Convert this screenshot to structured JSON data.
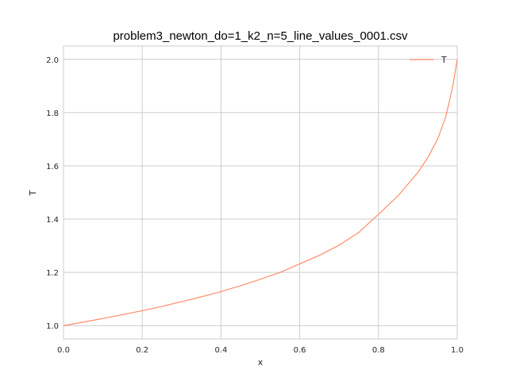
{
  "chart_data": {
    "type": "line",
    "title": "problem3_newton_do=1_k2_n=5_line_values_0001.csv",
    "xlabel": "x",
    "ylabel": "T",
    "xlim": [
      0.0,
      1.0
    ],
    "ylim": [
      0.95,
      2.05
    ],
    "xticks": [
      0.0,
      0.2,
      0.4,
      0.6,
      0.8,
      1.0
    ],
    "yticks": [
      1.0,
      1.2,
      1.4,
      1.6,
      1.8,
      2.0
    ],
    "xtick_labels": [
      "0.0",
      "0.2",
      "0.4",
      "0.6",
      "0.8",
      "1.0"
    ],
    "ytick_labels": [
      "1.0",
      "1.2",
      "1.4",
      "1.6",
      "1.8",
      "2.0"
    ],
    "grid": true,
    "legend_position": "top-right",
    "series": [
      {
        "name": "T",
        "color": "#ff8c69",
        "x": [
          0.0,
          0.05,
          0.1,
          0.15,
          0.2,
          0.25,
          0.3,
          0.35,
          0.4,
          0.45,
          0.5,
          0.55,
          0.6,
          0.65,
          0.7,
          0.75,
          0.8,
          0.85,
          0.9,
          0.925,
          0.95,
          0.97,
          0.98,
          0.99,
          1.0
        ],
        "y": [
          1.0,
          1.013,
          1.027,
          1.041,
          1.056,
          1.072,
          1.09,
          1.108,
          1.128,
          1.15,
          1.174,
          1.2,
          1.232,
          1.264,
          1.302,
          1.35,
          1.418,
          1.488,
          1.575,
          1.63,
          1.7,
          1.78,
          1.84,
          1.91,
          2.0
        ]
      }
    ]
  }
}
